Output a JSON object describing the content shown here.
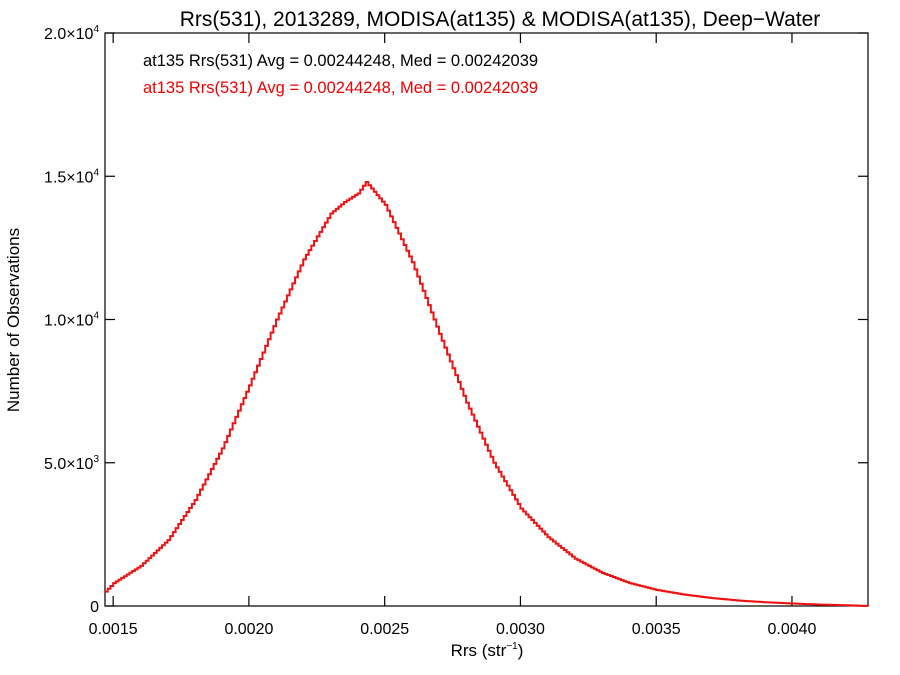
{
  "chart_data": {
    "type": "line",
    "title": "Rrs(531), 2013289, MODISA(at135) & MODISA(at135), Deep−Water",
    "xlabel": {
      "base": "Rrs (str",
      "sup": "−1",
      "end": ")"
    },
    "ylabel": "Number of Observations",
    "xlim": [
      0.00147,
      0.00428
    ],
    "ylim": [
      0,
      20000
    ],
    "x_ticks": [
      {
        "value": 0.0015,
        "label": "0.0015"
      },
      {
        "value": 0.002,
        "label": "0.0020"
      },
      {
        "value": 0.0025,
        "label": "0.0025"
      },
      {
        "value": 0.003,
        "label": "0.0030"
      },
      {
        "value": 0.0035,
        "label": "0.0035"
      },
      {
        "value": 0.004,
        "label": "0.0040"
      }
    ],
    "y_ticks": [
      {
        "value": 0,
        "mant": "0",
        "exp": ""
      },
      {
        "value": 5000,
        "mant": "5.0×10",
        "exp": "3"
      },
      {
        "value": 10000,
        "mant": "1.0×10",
        "exp": "4"
      },
      {
        "value": 15000,
        "mant": "1.5×10",
        "exp": "4"
      },
      {
        "value": 20000,
        "mant": "2.0×10",
        "exp": "4"
      }
    ],
    "annotations": [
      {
        "text": "at135 Rrs(531) Avg = 0.00244248, Med = 0.00242039",
        "color": "#000000"
      },
      {
        "text": "at135 Rrs(531) Avg = 0.00244248, Med = 0.00242039",
        "color": "#ee0000"
      }
    ],
    "series": [
      {
        "color": "#ee1111",
        "style": "step",
        "x": [
          0.00147,
          0.0015,
          0.0016,
          0.0017,
          0.0018,
          0.0019,
          0.002,
          0.0021,
          0.0022,
          0.0023,
          0.00235,
          0.0024,
          0.00243,
          0.0025,
          0.0026,
          0.0027,
          0.0028,
          0.0029,
          0.003,
          0.0031,
          0.0032,
          0.0033,
          0.0034,
          0.0035,
          0.0036,
          0.0037,
          0.0038,
          0.0039,
          0.004,
          0.0041,
          0.0042,
          0.00428
        ],
        "y": [
          500,
          800,
          1400,
          2300,
          3700,
          5500,
          7700,
          10000,
          12100,
          13700,
          14100,
          14400,
          14800,
          14000,
          12000,
          9500,
          7100,
          5000,
          3400,
          2400,
          1650,
          1150,
          800,
          560,
          400,
          280,
          190,
          130,
          85,
          50,
          25,
          0
        ]
      }
    ]
  }
}
